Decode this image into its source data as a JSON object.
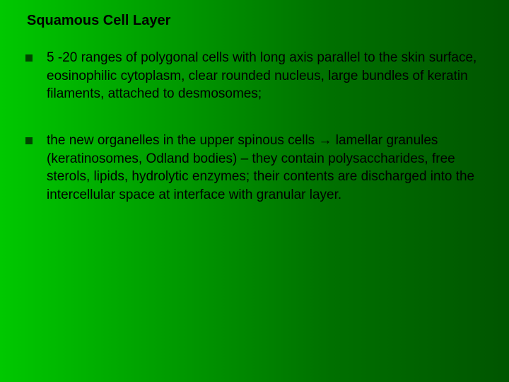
{
  "slide": {
    "title": "Squamous Cell Layer",
    "bullets": [
      "5 -20 ranges of polygonal cells with long axis parallel to the skin surface, eosinophilic cytoplasm, clear rounded nucleus, large bundles of keratin filaments, attached to desmosomes;",
      "the new organelles in the upper spinous cells → lamellar granules (keratinosomes, Odland bodies) – they contain polysaccharides, free sterols, lipids, hydrolytic enzymes; their contents are discharged into the intercellular space at interface with granular layer."
    ],
    "background_gradient": [
      "#00c800",
      "#009900",
      "#007000",
      "#005500"
    ],
    "text_color": "#000000",
    "bullet_color": "#004400",
    "title_fontsize": 20,
    "body_fontsize": 19
  }
}
